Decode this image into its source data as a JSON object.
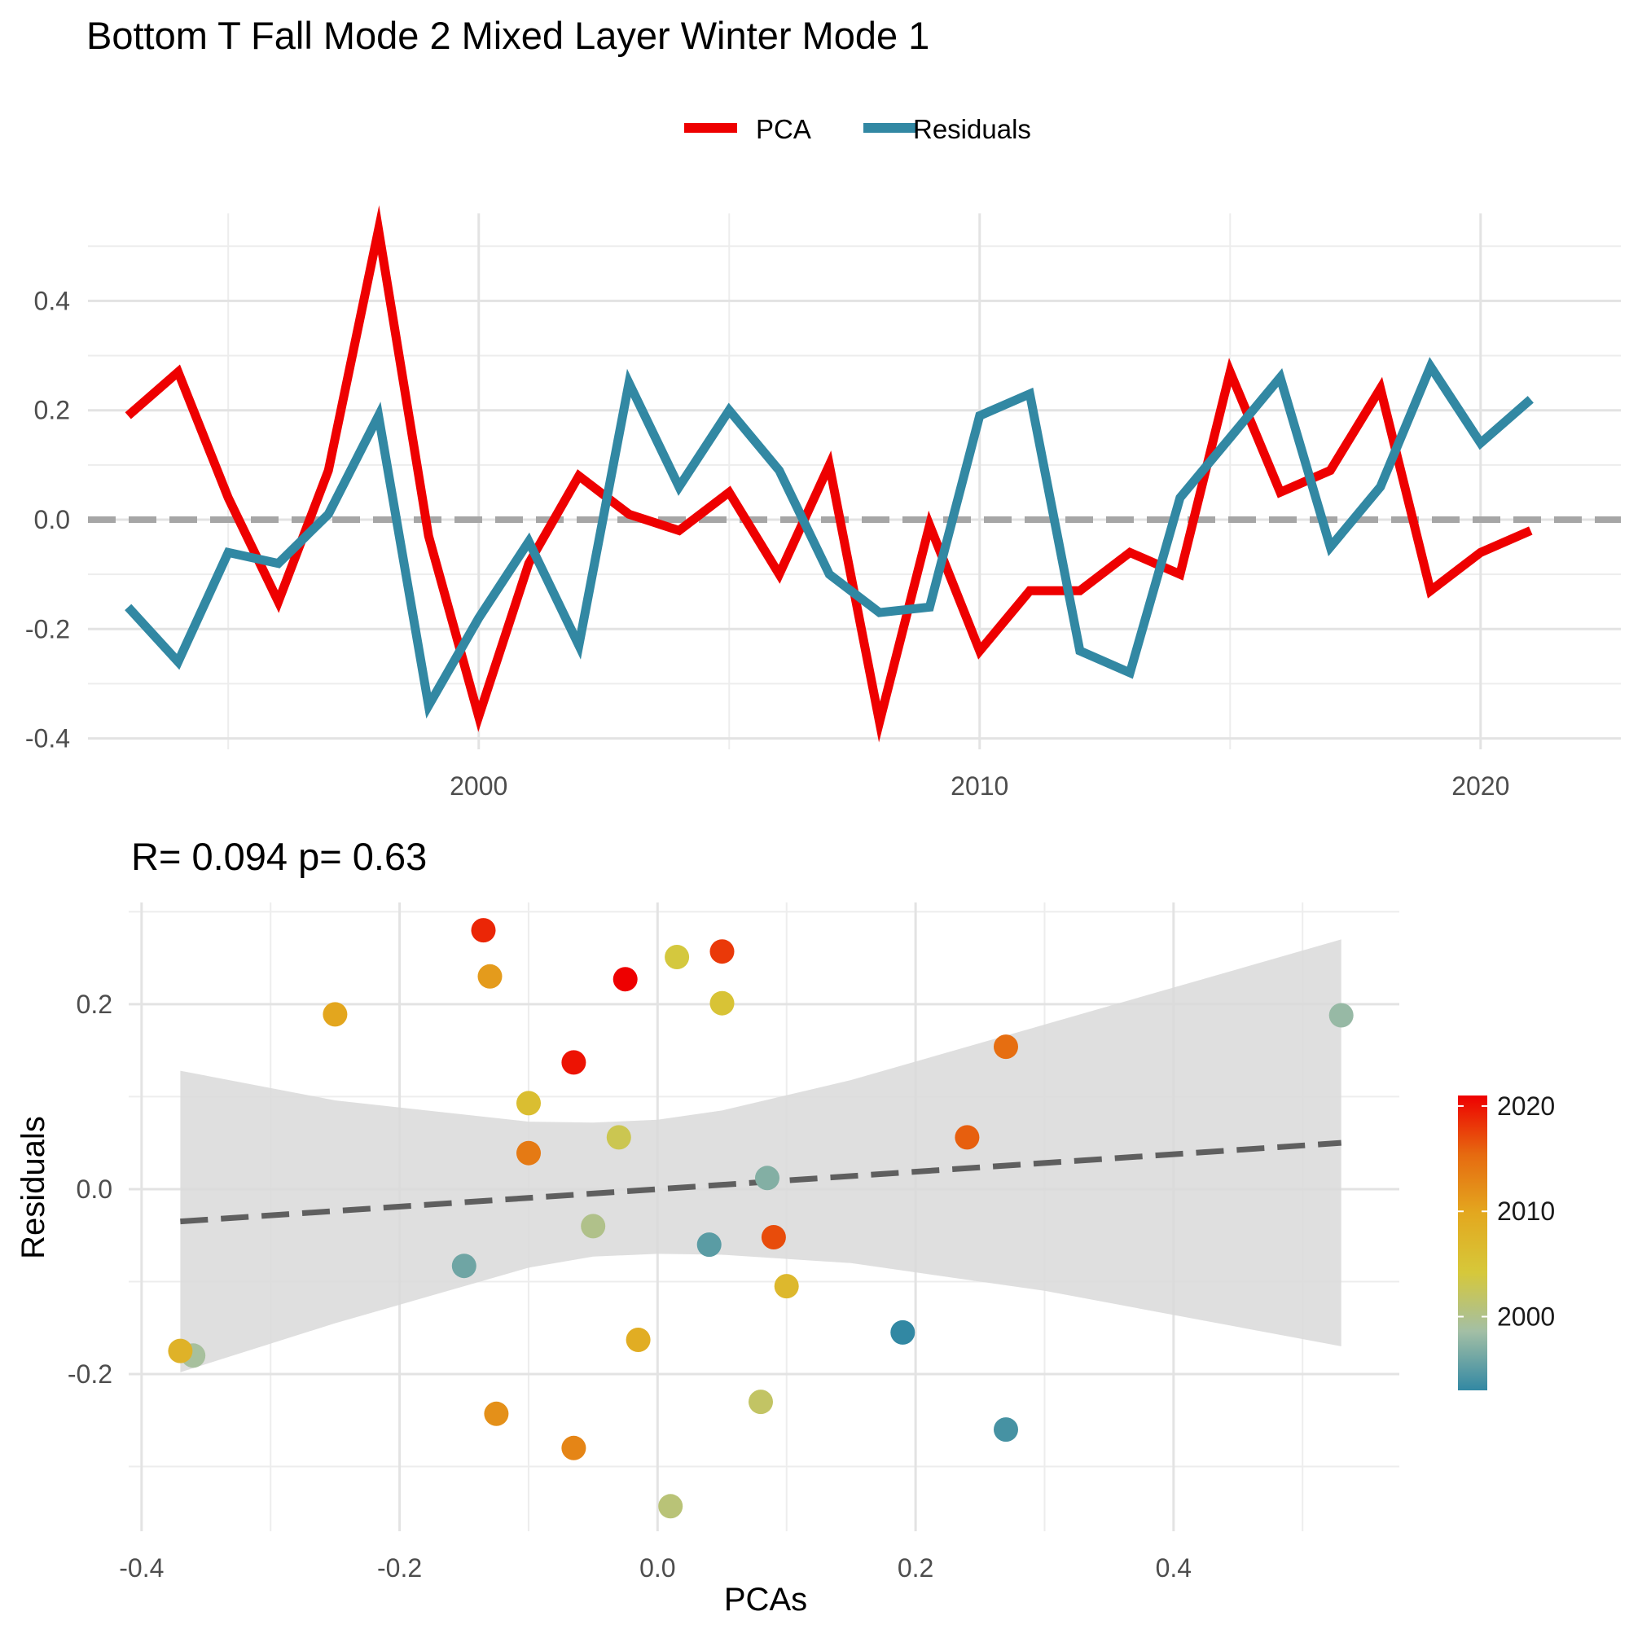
{
  "title": "Bottom T Fall Mode 2 Mixed Layer Winter Mode 1",
  "legend": {
    "items": [
      {
        "label": "PCA",
        "color": "#ee0000"
      },
      {
        "label": "Residuals",
        "color": "#3288a3"
      }
    ]
  },
  "chart_data": [
    {
      "type": "line",
      "title": "",
      "xlabel": "",
      "ylabel": "",
      "xlim": [
        1992.2,
        2022.8
      ],
      "ylim": [
        -0.42,
        0.56
      ],
      "x_ticks": [
        2000,
        2010,
        2020
      ],
      "y_ticks": [
        -0.4,
        -0.2,
        0.0,
        0.2,
        0.4
      ],
      "x_tick_labels": [
        "2000",
        "2010",
        "2020"
      ],
      "y_tick_labels": [
        "-0.4",
        "-0.2",
        "0.0",
        "0.2",
        "0.4"
      ],
      "reference_line": {
        "y": 0,
        "style": "dashed",
        "color": "#a6a6a6"
      },
      "grid": true,
      "x": [
        1993,
        1994,
        1995,
        1996,
        1997,
        1998,
        1999,
        2000,
        2001,
        2002,
        2003,
        2004,
        2005,
        2006,
        2007,
        2008,
        2009,
        2010,
        2011,
        2012,
        2013,
        2014,
        2015,
        2016,
        2017,
        2018,
        2019,
        2020,
        2021
      ],
      "series": [
        {
          "name": "PCA",
          "color": "#ee0000",
          "values": [
            0.19,
            0.27,
            0.04,
            -0.15,
            0.09,
            0.53,
            -0.03,
            -0.36,
            -0.08,
            0.08,
            0.01,
            -0.02,
            0.05,
            -0.1,
            0.1,
            -0.37,
            -0.01,
            -0.24,
            -0.13,
            -0.13,
            -0.06,
            -0.1,
            0.27,
            0.05,
            0.09,
            0.24,
            -0.13,
            -0.06,
            -0.02
          ]
        },
        {
          "name": "Residuals",
          "color": "#3288a3",
          "values": [
            -0.16,
            -0.26,
            -0.06,
            -0.08,
            0.01,
            0.19,
            -0.34,
            -0.18,
            -0.04,
            -0.23,
            0.25,
            0.06,
            0.2,
            0.09,
            -0.1,
            -0.17,
            -0.16,
            0.19,
            0.23,
            -0.24,
            -0.28,
            0.04,
            0.15,
            0.26,
            -0.05,
            0.06,
            0.28,
            0.14,
            0.22
          ]
        }
      ]
    },
    {
      "type": "scatter",
      "title": "R= 0.094  p= 0.63",
      "xlabel": "PCAs",
      "ylabel": "Residuals",
      "xlim": [
        -0.41,
        0.575
      ],
      "ylim": [
        -0.37,
        0.31
      ],
      "x_ticks": [
        -0.4,
        -0.2,
        0.0,
        0.2,
        0.4
      ],
      "y_ticks": [
        -0.2,
        0.0,
        0.2
      ],
      "x_tick_labels": [
        "-0.4",
        "-0.2",
        "0.0",
        "0.2",
        "0.4"
      ],
      "y_tick_labels": [
        "-0.2",
        "0.0",
        "0.2"
      ],
      "grid": true,
      "fit_line": {
        "style": "dashed",
        "color": "#5f5f5f",
        "x": [
          -0.37,
          0.53
        ],
        "y": [
          -0.035,
          0.05
        ]
      },
      "confidence_band": {
        "color": "#d9d9d9",
        "x": [
          -0.37,
          -0.25,
          -0.1,
          -0.05,
          0.0,
          0.05,
          0.15,
          0.3,
          0.53
        ],
        "upper": [
          0.128,
          0.096,
          0.073,
          0.072,
          0.075,
          0.085,
          0.118,
          0.178,
          0.27
        ],
        "lower": [
          -0.198,
          -0.145,
          -0.085,
          -0.073,
          -0.07,
          -0.071,
          -0.08,
          -0.11,
          -0.17
        ]
      },
      "colorbar": {
        "range": [
          1993,
          2021
        ],
        "ticks": [
          2000,
          2010,
          2020
        ],
        "tick_labels": [
          "2000",
          "2010",
          "2020"
        ],
        "colors": [
          "#3288a3",
          "#a3bfa5",
          "#d6c83a",
          "#e3a81f",
          "#e66a10",
          "#ee0000"
        ]
      },
      "points": [
        {
          "x": 0.19,
          "y": -0.155,
          "year": 1993
        },
        {
          "x": 0.27,
          "y": -0.26,
          "year": 1994
        },
        {
          "x": 0.04,
          "y": -0.06,
          "year": 1995
        },
        {
          "x": -0.15,
          "y": -0.083,
          "year": 1996
        },
        {
          "x": 0.085,
          "y": 0.012,
          "year": 1997
        },
        {
          "x": 0.53,
          "y": 0.188,
          "year": 1998
        },
        {
          "x": -0.36,
          "y": -0.18,
          "year": 1999
        },
        {
          "x": -0.05,
          "y": -0.04,
          "year": 2000
        },
        {
          "x": 0.01,
          "y": -0.343,
          "year": 2001
        },
        {
          "x": 0.08,
          "y": -0.23,
          "year": 2002
        },
        {
          "x": -0.03,
          "y": 0.056,
          "year": 2003
        },
        {
          "x": 0.015,
          "y": 0.251,
          "year": 2004
        },
        {
          "x": 0.05,
          "y": 0.201,
          "year": 2005
        },
        {
          "x": -0.1,
          "y": 0.093,
          "year": 2006
        },
        {
          "x": 0.1,
          "y": -0.105,
          "year": 2007
        },
        {
          "x": -0.37,
          "y": -0.175,
          "year": 2008
        },
        {
          "x": -0.015,
          "y": -0.163,
          "year": 2009
        },
        {
          "x": -0.25,
          "y": 0.189,
          "year": 2010
        },
        {
          "x": -0.13,
          "y": 0.23,
          "year": 2011
        },
        {
          "x": -0.125,
          "y": -0.243,
          "year": 2012
        },
        {
          "x": -0.065,
          "y": -0.28,
          "year": 2013
        },
        {
          "x": -0.1,
          "y": 0.039,
          "year": 2014
        },
        {
          "x": 0.27,
          "y": 0.154,
          "year": 2015
        },
        {
          "x": 0.24,
          "y": 0.056,
          "year": 2016
        },
        {
          "x": 0.09,
          "y": -0.052,
          "year": 2017
        },
        {
          "x": 0.05,
          "y": 0.257,
          "year": 2018
        },
        {
          "x": -0.135,
          "y": 0.28,
          "year": 2019
        },
        {
          "x": -0.065,
          "y": 0.137,
          "year": 2020
        },
        {
          "x": -0.025,
          "y": 0.227,
          "year": 2021
        }
      ]
    }
  ]
}
